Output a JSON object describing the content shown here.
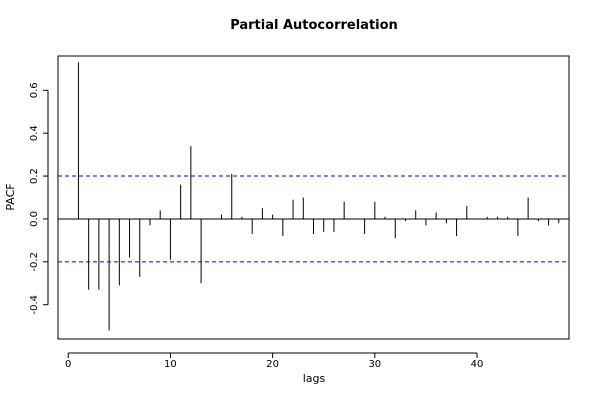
{
  "chart_data": {
    "type": "bar",
    "title": "Partial Autocorrelation",
    "xlabel": "lags",
    "ylabel": "PACF",
    "xlim": [
      -1,
      49
    ],
    "ylim": [
      -0.56,
      0.76
    ],
    "x_ticks": [
      0,
      10,
      20,
      30,
      40
    ],
    "y_ticks": [
      -0.4,
      -0.2,
      0.0,
      0.2,
      0.4,
      0.6
    ],
    "y_tick_labels": [
      "-0.4",
      "-0.2",
      "0.0",
      "0.2",
      "0.4",
      "0.6"
    ],
    "confidence_bounds": [
      0.2,
      -0.2
    ],
    "lags": [
      1,
      2,
      3,
      4,
      5,
      6,
      7,
      8,
      9,
      10,
      11,
      12,
      13,
      14,
      15,
      16,
      17,
      18,
      19,
      20,
      21,
      22,
      23,
      24,
      25,
      26,
      27,
      28,
      29,
      30,
      31,
      32,
      33,
      34,
      35,
      36,
      37,
      38,
      39,
      40,
      41,
      42,
      43,
      44,
      45,
      46,
      47,
      48
    ],
    "values": [
      0.73,
      -0.33,
      -0.33,
      -0.52,
      -0.31,
      -0.18,
      -0.27,
      -0.03,
      0.04,
      -0.19,
      0.16,
      0.34,
      -0.3,
      0.0,
      0.02,
      0.21,
      0.01,
      -0.07,
      0.05,
      0.02,
      -0.08,
      0.09,
      0.1,
      -0.07,
      -0.06,
      -0.06,
      0.08,
      0.0,
      -0.07,
      0.08,
      0.01,
      -0.09,
      -0.01,
      0.04,
      -0.03,
      0.03,
      -0.02,
      -0.08,
      0.06,
      0.0,
      0.01,
      0.01,
      0.01,
      -0.08,
      0.1,
      -0.01,
      -0.03,
      -0.02
    ],
    "colors": {
      "bars": "#000000",
      "bounds": "#0000ff",
      "zero_line": "#000000"
    }
  }
}
